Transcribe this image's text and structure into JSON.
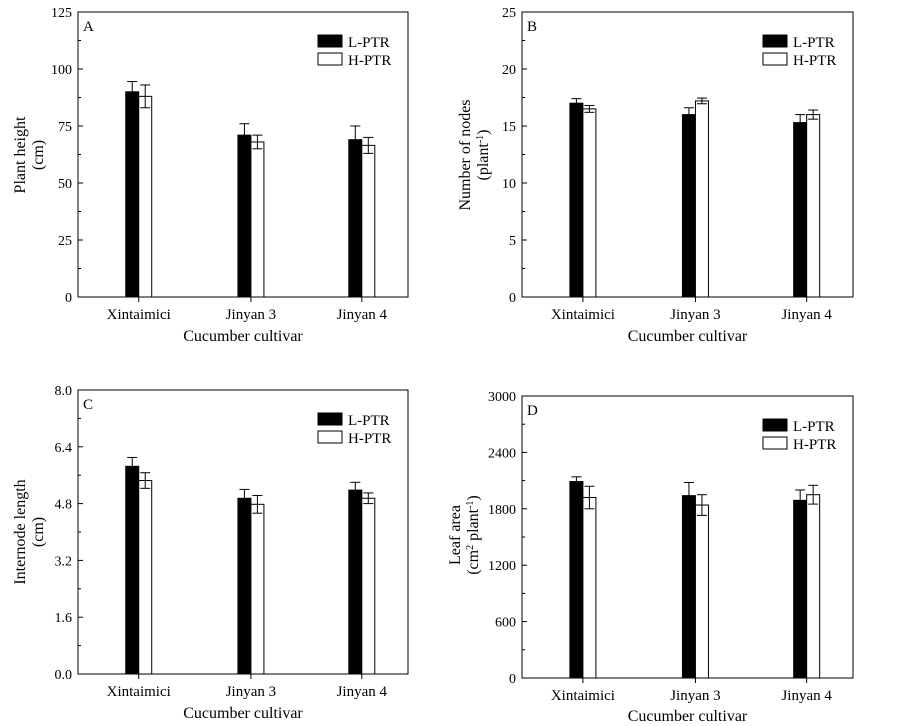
{
  "legend": {
    "l_ptr": "L-PTR",
    "h_ptr": "H-PTR"
  },
  "colors": {
    "l_ptr_fill": "#000000",
    "h_ptr_fill": "#ffffff",
    "stroke": "#000000"
  },
  "chart_data": [
    {
      "type": "bar",
      "panel_label": "A",
      "categories": [
        "Xintaimici",
        "Jinyan 3",
        "Jinyan 4"
      ],
      "series": [
        {
          "name": "L-PTR",
          "values": [
            90,
            71,
            69
          ],
          "errors": [
            4.5,
            5,
            6
          ]
        },
        {
          "name": "H-PTR",
          "values": [
            88,
            68,
            66.5
          ],
          "errors": [
            5,
            3,
            3.5
          ]
        }
      ],
      "xlabel": "Cucumber cultivar",
      "ylabel_lines": [
        "Plant height",
        "(cm)"
      ],
      "ylim": [
        0,
        125
      ],
      "yticks": [
        0,
        25,
        50,
        75,
        100,
        125
      ],
      "ytick_labels": [
        "0",
        "25",
        "50",
        "75",
        "100",
        "125"
      ],
      "legend_position": "top-right"
    },
    {
      "type": "bar",
      "panel_label": "B",
      "categories": [
        "Xintaimici",
        "Jinyan 3",
        "Jinyan 4"
      ],
      "series": [
        {
          "name": "L-PTR",
          "values": [
            17.0,
            16.0,
            15.3
          ],
          "errors": [
            0.4,
            0.6,
            0.7
          ]
        },
        {
          "name": "H-PTR",
          "values": [
            16.5,
            17.2,
            16.0
          ],
          "errors": [
            0.3,
            0.25,
            0.4
          ]
        }
      ],
      "xlabel": "Cucumber cultivar",
      "ylabel_lines": [
        "Number of nodes",
        "(plant",
        "-1",
        ")"
      ],
      "ylim": [
        0,
        25
      ],
      "yticks": [
        0,
        5,
        10,
        15,
        20,
        25
      ],
      "ytick_labels": [
        "0",
        "5",
        "10",
        "15",
        "20",
        "25"
      ],
      "legend_position": "top-right"
    },
    {
      "type": "bar",
      "panel_label": "C",
      "categories": [
        "Xintaimici",
        "Jinyan 3",
        "Jinyan 4"
      ],
      "series": [
        {
          "name": "L-PTR",
          "values": [
            5.85,
            4.95,
            5.18
          ],
          "errors": [
            0.25,
            0.25,
            0.22
          ]
        },
        {
          "name": "H-PTR",
          "values": [
            5.45,
            4.78,
            4.95
          ],
          "errors": [
            0.22,
            0.25,
            0.15
          ]
        }
      ],
      "xlabel": "Cucumber cultivar",
      "ylabel_lines": [
        "Internode length",
        "(cm)"
      ],
      "ylim": [
        0,
        8
      ],
      "yticks": [
        0,
        1.6,
        3.2,
        4.8,
        6.4,
        8.0
      ],
      "ytick_labels": [
        "0.0",
        "1.6",
        "3.2",
        "4.8",
        "6.4",
        "8.0"
      ],
      "legend_position": "top-right"
    },
    {
      "type": "bar",
      "panel_label": "D",
      "categories": [
        "Xintaimici",
        "Jinyan 3",
        "Jinyan 4"
      ],
      "series": [
        {
          "name": "L-PTR",
          "values": [
            2090,
            1940,
            1890
          ],
          "errors": [
            50,
            140,
            110
          ]
        },
        {
          "name": "H-PTR",
          "values": [
            1920,
            1840,
            1950
          ],
          "errors": [
            120,
            110,
            100
          ]
        }
      ],
      "xlabel": "Cucumber cultivar",
      "ylabel_lines": [
        "Leaf area",
        "(cm",
        "2",
        " plant",
        "-1",
        ")"
      ],
      "ylim": [
        0,
        3000
      ],
      "yticks": [
        0,
        600,
        1200,
        1800,
        2400,
        3000
      ],
      "ytick_labels": [
        "0",
        "600",
        "1200",
        "1800",
        "2400",
        "3000"
      ],
      "legend_position": "top-right"
    }
  ]
}
